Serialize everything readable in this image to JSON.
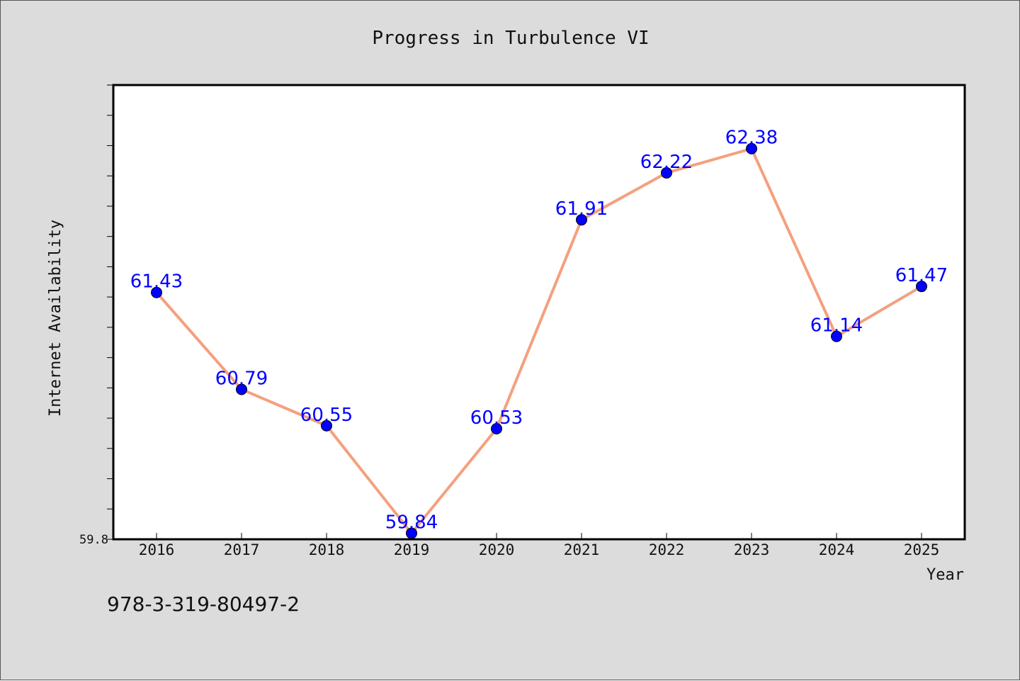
{
  "colors": {
    "background": "#dcdcdc",
    "plot_background": "#ffffff",
    "line": "#f4a07e",
    "marker": "#0000ff",
    "data_label": "#0000ff",
    "text": "#111111"
  },
  "chart_data": {
    "type": "line",
    "title": "Progress in Turbulence VI",
    "xlabel": "Year",
    "ylabel": "Internet Availability",
    "categories": [
      "2016",
      "2017",
      "2018",
      "2019",
      "2020",
      "2021",
      "2022",
      "2023",
      "2024",
      "2025"
    ],
    "series": [
      {
        "values": [
          61.43,
          60.79,
          60.55,
          59.84,
          60.53,
          61.91,
          62.22,
          62.38,
          61.14,
          61.47
        ],
        "labels": [
          "61.43",
          "60.79",
          "60.55",
          "59.84",
          "60.53",
          "61.91",
          "62.22",
          "62.38",
          "61.14",
          "61.47"
        ]
      }
    ],
    "ylim": [
      59.8,
      62.8
    ],
    "y_tick_labels": [
      "59.8"
    ],
    "grid": false,
    "legend": "none"
  },
  "footer": {
    "isbn": "978-3-319-80497-2"
  }
}
